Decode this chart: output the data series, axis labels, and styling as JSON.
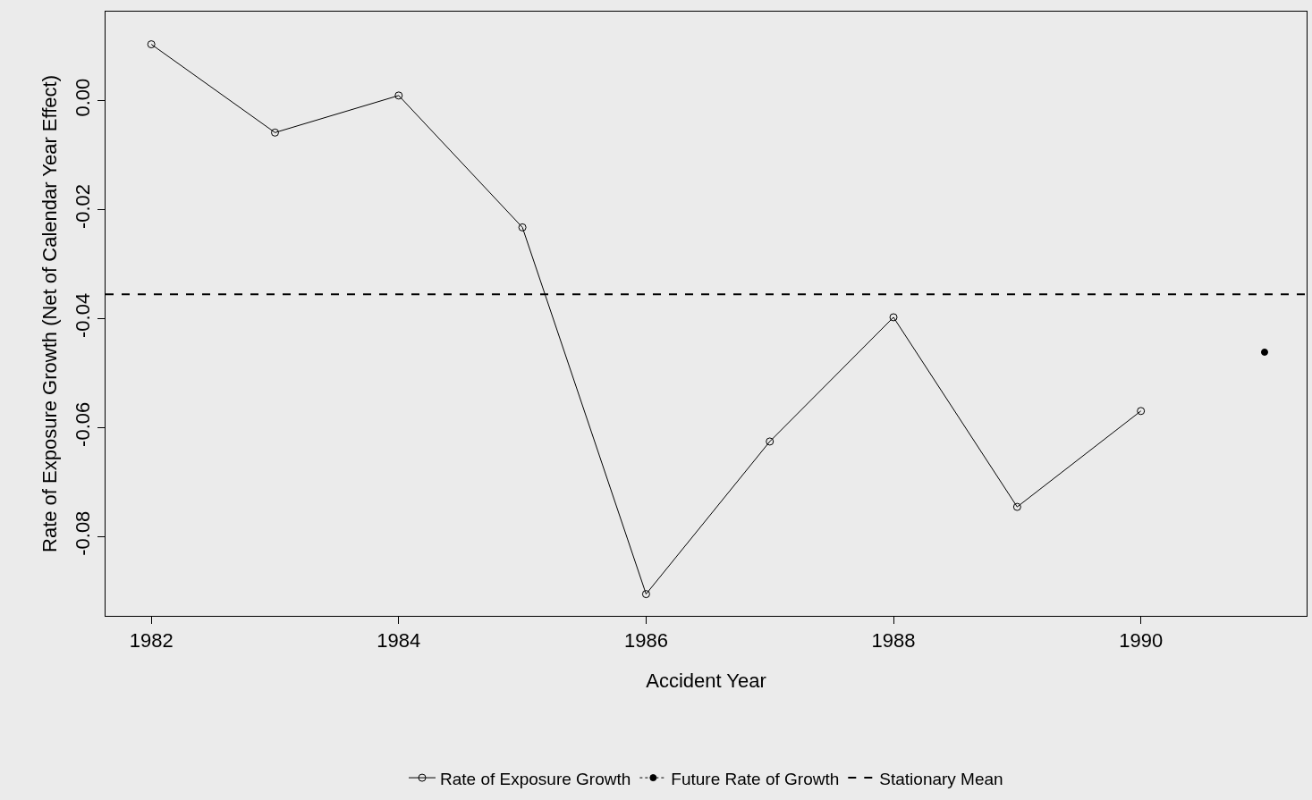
{
  "chart_data": {
    "type": "line",
    "xlabel": "Accident Year",
    "ylabel": "Rate of Exposure Growth (Net of Calendar Year Effect)",
    "series": [
      {
        "name": "Rate of Exposure Growth",
        "color": "#000000",
        "marker": "circle-open",
        "line_style": "solid",
        "x": [
          1982,
          1983,
          1984,
          1985,
          1986,
          1987,
          1988,
          1989,
          1990
        ],
        "values": [
          0.0103,
          -0.0059,
          0.0009,
          -0.0233,
          -0.0906,
          -0.0626,
          -0.0398,
          -0.0746,
          -0.057
        ]
      },
      {
        "name": "Future Rate of Growth",
        "color": "#000000",
        "marker": "circle",
        "line_style": "dotted",
        "x": [
          1991
        ],
        "values": [
          -0.0462
        ]
      }
    ],
    "ref_lines": [
      {
        "axis": "y",
        "value": -0.0356,
        "label": "Stationary Mean",
        "color": "#000000",
        "line_style": "dashed"
      }
    ],
    "xlim": [
      1981.63,
      1991.34
    ],
    "xticks": [
      1982,
      1984,
      1986,
      1988,
      1990
    ],
    "ylim": [
      -0.0946,
      0.0163
    ],
    "yticks": [
      {
        "value": 0,
        "label": "0.00"
      },
      {
        "value": -0.02,
        "label": "-0.02"
      },
      {
        "value": -0.04,
        "label": "-0.04"
      },
      {
        "value": -0.06,
        "label": "-0.06"
      },
      {
        "value": -0.08,
        "label": "-0.08"
      }
    ],
    "grid": false,
    "legend": "bottom"
  }
}
